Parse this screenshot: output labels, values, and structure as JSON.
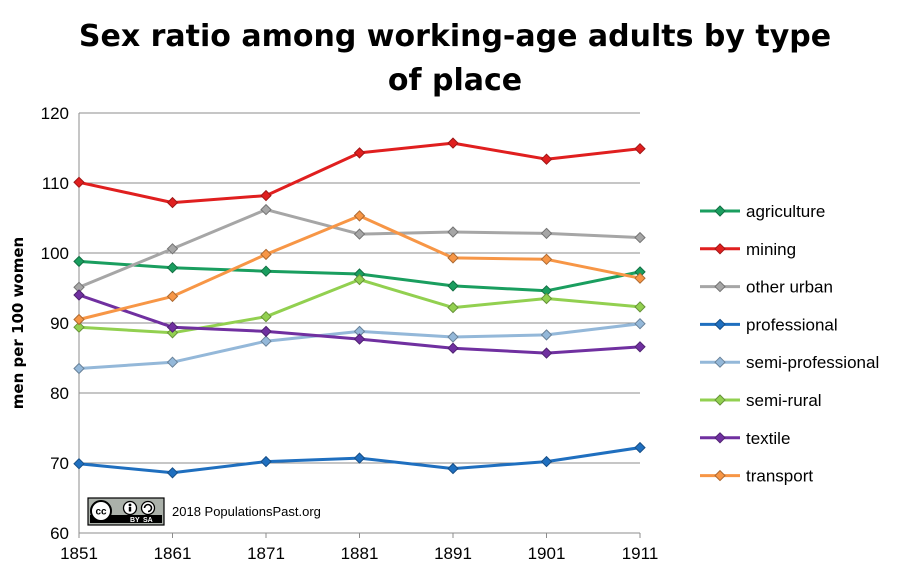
{
  "chart_data": {
    "type": "line",
    "title_lines": [
      "Sex ratio among working-age adults by type",
      "of place"
    ],
    "xlabel": "",
    "ylabel": "men per 100 women",
    "x": [
      "1851",
      "1861",
      "1871",
      "1881",
      "1891",
      "1901",
      "1911"
    ],
    "ylim": [
      60,
      120
    ],
    "yticks": [
      60,
      70,
      80,
      90,
      100,
      110,
      120
    ],
    "grid": "horizontal",
    "legend_position": "right",
    "series": [
      {
        "name": "agriculture",
        "color": "#1a9e5f",
        "values": [
          98.8,
          97.9,
          97.4,
          97.0,
          95.3,
          94.6,
          97.3
        ]
      },
      {
        "name": "mining",
        "color": "#e01f1f",
        "values": [
          110.1,
          107.2,
          108.2,
          114.3,
          115.7,
          113.4,
          114.9
        ]
      },
      {
        "name": "other urban",
        "color": "#a6a6a6",
        "values": [
          95.1,
          100.6,
          106.2,
          102.7,
          103.0,
          102.8,
          102.2
        ]
      },
      {
        "name": "professional",
        "color": "#1f6fbf",
        "values": [
          69.9,
          68.6,
          70.2,
          70.7,
          69.2,
          70.2,
          72.2
        ]
      },
      {
        "name": "semi-professional",
        "color": "#94b8d9",
        "values": [
          83.5,
          84.4,
          87.4,
          88.8,
          88.0,
          88.3,
          89.9
        ]
      },
      {
        "name": "semi-rural",
        "color": "#92d050",
        "values": [
          89.4,
          88.6,
          90.9,
          96.2,
          92.2,
          93.5,
          92.3
        ]
      },
      {
        "name": "textile",
        "color": "#7030a0",
        "values": [
          94.0,
          89.4,
          88.8,
          87.7,
          86.4,
          85.7,
          86.6
        ]
      },
      {
        "name": "transport",
        "color": "#f79646",
        "values": [
          90.5,
          93.8,
          99.8,
          105.3,
          99.3,
          99.1,
          96.4
        ]
      }
    ],
    "marker": "diamond-icon"
  },
  "credit": {
    "badge": "cc-by-sa-icon",
    "text": "2018 PopulationsPast.org"
  }
}
